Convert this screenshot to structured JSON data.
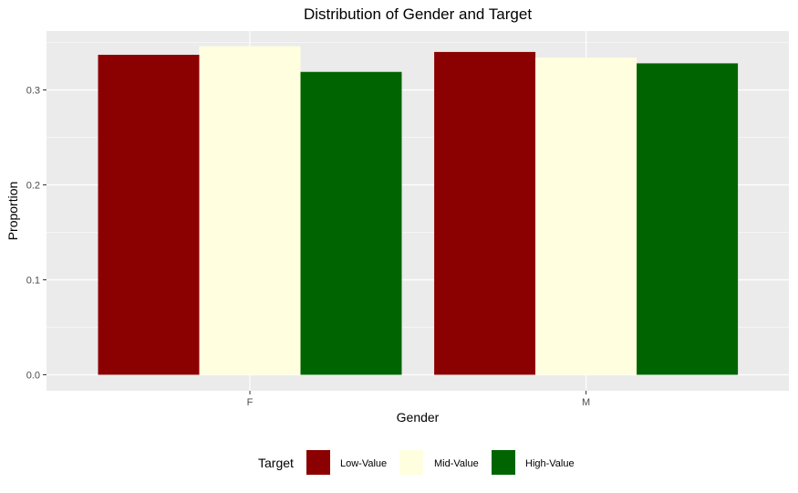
{
  "chart_data": {
    "type": "bar",
    "title": "Distribution of Gender and Target",
    "xlabel": "Gender",
    "ylabel": "Proportion",
    "categories": [
      "F",
      "M"
    ],
    "series": [
      {
        "name": "Low-Value",
        "color": "#8b0000",
        "values": [
          0.337,
          0.34
        ]
      },
      {
        "name": "Mid-Value",
        "color": "#ffffe0",
        "values": [
          0.346,
          0.334
        ]
      },
      {
        "name": "High-Value",
        "color": "#006400",
        "values": [
          0.319,
          0.328
        ]
      }
    ],
    "ylim": [
      0,
      0.35
    ],
    "yticks": [
      0.0,
      0.1,
      0.2,
      0.3
    ],
    "ytick_labels": [
      "0.0",
      "0.1",
      "0.2",
      "0.3"
    ],
    "grid": true,
    "legend": {
      "title": "Target",
      "position": "bottom"
    },
    "panel_color": "#ebebeb"
  }
}
